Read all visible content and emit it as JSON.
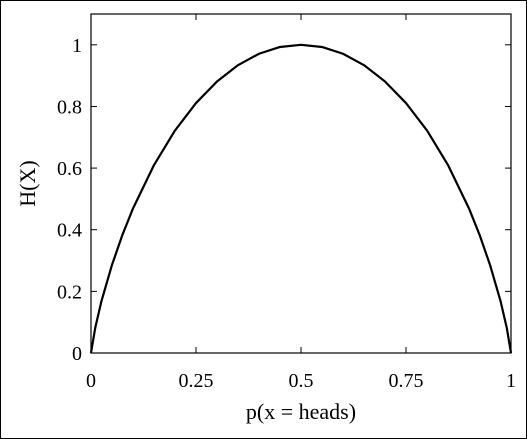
{
  "chart_data": {
    "type": "line",
    "title": "",
    "xlabel": "p(x = heads)",
    "ylabel": "H(X)",
    "xlim": [
      0,
      1
    ],
    "ylim": [
      0,
      1.1
    ],
    "xticks": [
      0,
      0.25,
      0.5,
      0.75,
      1
    ],
    "xtick_labels": [
      "0",
      "0.25",
      "0.5",
      "0.75",
      "1"
    ],
    "yticks": [
      0,
      0.2,
      0.4,
      0.6,
      0.8,
      1
    ],
    "ytick_labels": [
      "0",
      "0.2",
      "0.4",
      "0.6",
      "0.8",
      "1"
    ],
    "grid": false,
    "legend": "none",
    "series": [
      {
        "color": "#000000",
        "x": [
          0,
          0.01,
          0.025,
          0.05,
          0.075,
          0.1,
          0.15,
          0.2,
          0.25,
          0.3,
          0.35,
          0.4,
          0.45,
          0.5,
          0.55,
          0.6,
          0.65,
          0.7,
          0.75,
          0.8,
          0.85,
          0.9,
          0.925,
          0.95,
          0.975,
          0.99,
          1
        ],
        "y": [
          0,
          0.081,
          0.169,
          0.286,
          0.384,
          0.469,
          0.61,
          0.722,
          0.811,
          0.881,
          0.934,
          0.971,
          0.993,
          1,
          0.993,
          0.971,
          0.934,
          0.881,
          0.811,
          0.722,
          0.61,
          0.469,
          0.384,
          0.286,
          0.169,
          0.081,
          0
        ]
      }
    ]
  }
}
